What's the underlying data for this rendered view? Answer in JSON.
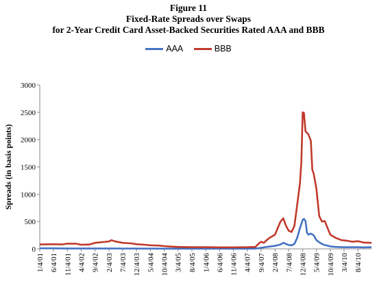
{
  "chart_data": {
    "type": "line",
    "figure_label": "Figure 11",
    "title_line1": "Fixed-Rate Spreads over Swaps",
    "title_line2": "for 2-Year Credit Card Asset-Backed Securities Rated AAA and BBB",
    "ylabel": "Spreads (in basis points)",
    "xlabel": "",
    "ylim": [
      0,
      3000
    ],
    "yticks": [
      0,
      500,
      1000,
      1500,
      2000,
      2500,
      3000
    ],
    "xrange": [
      "1/4/01",
      "12/31/10"
    ],
    "xticks": [
      "1/4/01",
      "6/4/01",
      "11/4/01",
      "4/4/02",
      "9/4/02",
      "2/4/03",
      "7/4/03",
      "12/4/03",
      "5/4/04",
      "10/4/04",
      "3/4/05",
      "8/4/05",
      "1/4/06",
      "6/4/06",
      "11/4/06",
      "4/4/07",
      "9/4/07",
      "2/4/08",
      "7/4/08",
      "12/4/08",
      "5/4/09",
      "10/4/09",
      "3/4/10",
      "8/4/10"
    ],
    "legend_position": "top",
    "grid": false,
    "series": [
      {
        "name": "AAA",
        "color": "#4472C4",
        "points": [
          [
            "1/4/01",
            10
          ],
          [
            "6/4/01",
            10
          ],
          [
            "11/4/01",
            8
          ],
          [
            "4/4/02",
            8
          ],
          [
            "9/4/02",
            8
          ],
          [
            "2/4/03",
            8
          ],
          [
            "7/4/03",
            6
          ],
          [
            "12/4/03",
            5
          ],
          [
            "5/4/04",
            5
          ],
          [
            "10/4/04",
            4
          ],
          [
            "3/4/05",
            4
          ],
          [
            "8/4/05",
            4
          ],
          [
            "1/4/06",
            4
          ],
          [
            "6/4/06",
            4
          ],
          [
            "11/4/06",
            4
          ],
          [
            "4/4/07",
            4
          ],
          [
            "7/4/07",
            5
          ],
          [
            "9/4/07",
            20
          ],
          [
            "11/4/07",
            35
          ],
          [
            "2/4/08",
            55
          ],
          [
            "4/4/08",
            80
          ],
          [
            "5/4/08",
            110
          ],
          [
            "6/4/08",
            90
          ],
          [
            "7/4/08",
            70
          ],
          [
            "8/4/08",
            65
          ],
          [
            "9/4/08",
            90
          ],
          [
            "10/4/08",
            200
          ],
          [
            "11/4/08",
            380
          ],
          [
            "12/4/08",
            530
          ],
          [
            "12/18/08",
            550
          ],
          [
            "1/4/09",
            510
          ],
          [
            "1/20/09",
            300
          ],
          [
            "2/4/09",
            260
          ],
          [
            "3/4/09",
            280
          ],
          [
            "4/4/09",
            250
          ],
          [
            "5/4/09",
            160
          ],
          [
            "6/4/09",
            120
          ],
          [
            "7/4/09",
            90
          ],
          [
            "8/4/09",
            70
          ],
          [
            "10/4/09",
            45
          ],
          [
            "12/4/09",
            35
          ],
          [
            "3/4/10",
            30
          ],
          [
            "5/4/10",
            30
          ],
          [
            "8/4/10",
            30
          ],
          [
            "10/4/10",
            28
          ],
          [
            "12/31/10",
            30
          ]
        ]
      },
      {
        "name": "BBB",
        "color": "#C0392B",
        "points": [
          [
            "1/4/01",
            80
          ],
          [
            "6/4/01",
            85
          ],
          [
            "9/4/01",
            80
          ],
          [
            "11/4/01",
            95
          ],
          [
            "2/4/02",
            95
          ],
          [
            "4/4/02",
            75
          ],
          [
            "7/4/02",
            80
          ],
          [
            "9/4/02",
            110
          ],
          [
            "12/4/02",
            125
          ],
          [
            "2/4/03",
            135
          ],
          [
            "3/4/03",
            160
          ],
          [
            "4/4/03",
            140
          ],
          [
            "7/4/03",
            110
          ],
          [
            "10/4/03",
            100
          ],
          [
            "12/4/03",
            85
          ],
          [
            "3/4/04",
            75
          ],
          [
            "5/4/04",
            65
          ],
          [
            "8/4/04",
            60
          ],
          [
            "10/4/04",
            50
          ],
          [
            "1/4/05",
            40
          ],
          [
            "3/4/05",
            35
          ],
          [
            "8/4/05",
            30
          ],
          [
            "1/4/06",
            30
          ],
          [
            "6/4/06",
            28
          ],
          [
            "11/4/06",
            28
          ],
          [
            "4/4/07",
            30
          ],
          [
            "7/4/07",
            35
          ],
          [
            "8/4/07",
            90
          ],
          [
            "9/4/07",
            130
          ],
          [
            "10/4/07",
            110
          ],
          [
            "11/4/07",
            160
          ],
          [
            "12/4/07",
            200
          ],
          [
            "2/4/08",
            260
          ],
          [
            "3/4/08",
            380
          ],
          [
            "4/4/08",
            500
          ],
          [
            "5/4/08",
            560
          ],
          [
            "6/4/08",
            420
          ],
          [
            "7/4/08",
            330
          ],
          [
            "8/4/08",
            310
          ],
          [
            "9/4/08",
            420
          ],
          [
            "10/4/08",
            800
          ],
          [
            "11/4/08",
            1200
          ],
          [
            "11/20/08",
            1600
          ],
          [
            "12/4/08",
            2500
          ],
          [
            "12/18/08",
            2490
          ],
          [
            "1/4/09",
            2150
          ],
          [
            "2/4/09",
            2100
          ],
          [
            "3/4/09",
            1980
          ],
          [
            "3/20/09",
            1450
          ],
          [
            "4/4/09",
            1380
          ],
          [
            "5/4/09",
            1100
          ],
          [
            "6/4/09",
            600
          ],
          [
            "7/4/09",
            500
          ],
          [
            "8/4/09",
            510
          ],
          [
            "9/4/09",
            380
          ],
          [
            "10/4/09",
            260
          ],
          [
            "12/4/09",
            200
          ],
          [
            "2/4/10",
            160
          ],
          [
            "4/4/10",
            150
          ],
          [
            "6/4/10",
            130
          ],
          [
            "8/4/10",
            140
          ],
          [
            "10/4/10",
            115
          ],
          [
            "12/31/10",
            110
          ]
        ]
      }
    ]
  }
}
